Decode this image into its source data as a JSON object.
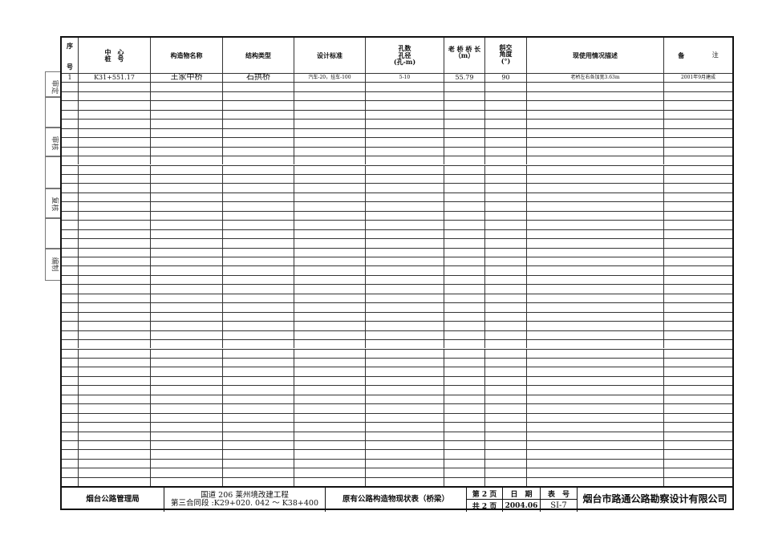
{
  "side_labels": [
    "审定",
    "审核",
    "复核",
    "编制"
  ],
  "header": {
    "seq": [
      "序",
      "号"
    ],
    "station": [
      "中　心",
      "桩　号"
    ],
    "name": "构造物名称",
    "structure": "结构类型",
    "standard": "设计标准",
    "span": [
      "孔数",
      "孔径",
      "(孔-m)"
    ],
    "length": [
      "老 桥 桥 长",
      "（m）"
    ],
    "skew": [
      "斜交",
      "角度",
      "(°)"
    ],
    "usage": "现使用情况描述",
    "remark": [
      "备",
      "注"
    ]
  },
  "rows": [
    {
      "seq": "1",
      "station": "K31+551.17",
      "name": "王家中桥",
      "structure": "石拱桥",
      "standard": "汽车-20，挂车-100",
      "span": "5-10",
      "length": "55.79",
      "skew": "90",
      "usage": "老桥左右各加宽3.63m",
      "remark": "2001年9月建成"
    }
  ],
  "footer": {
    "authority": "烟台公路管理局",
    "project_line1": "国道 206 莱州境改建工程",
    "project_line2": "第三合同段 :K29+020. 042 ～ K38+400",
    "table_title": "原有公路构造物现状表（桥梁）",
    "page": "第 2 页",
    "total": "共 2 页",
    "date_label": "日　期",
    "date": "2004.06",
    "table_no_label": "表　号",
    "table_no": "SI-7",
    "company": "烟台市路通公路勘察设计有限公司"
  }
}
